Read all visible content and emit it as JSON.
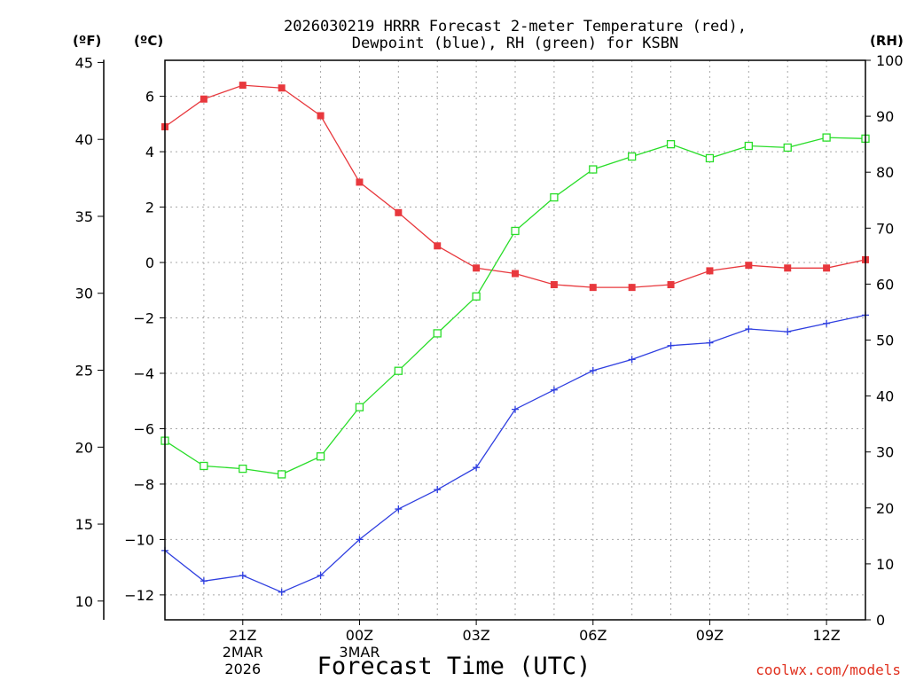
{
  "chart_data": {
    "type": "line",
    "title": "2026030219 HRRR Forecast 2-meter Temperature (red), Dewpoint (blue), RH (green) for KSBN",
    "title_lines": [
      "2026030219 HRRR Forecast 2-meter Temperature (red),",
      "Dewpoint (blue), RH (green) for KSBN"
    ],
    "xlabel": "Forecast Time (UTC)",
    "credit": "coolwx.com/models",
    "units": {
      "f": "(ºF)",
      "c": "(ºC)",
      "rh": "(RH)"
    },
    "x": [
      19,
      20,
      21,
      22,
      23,
      24,
      25,
      26,
      27,
      28,
      29,
      30,
      31,
      32,
      33,
      34,
      35,
      36,
      37
    ],
    "xlim": [
      19,
      37
    ],
    "x_ticks": [
      {
        "x": 21,
        "label": "21Z",
        "sub1": "2MAR",
        "sub2": "2026"
      },
      {
        "x": 24,
        "label": "00Z",
        "sub1": "3MAR",
        "sub2": ""
      },
      {
        "x": 27,
        "label": "03Z",
        "sub1": "",
        "sub2": ""
      },
      {
        "x": 30,
        "label": "06Z",
        "sub1": "",
        "sub2": ""
      },
      {
        "x": 33,
        "label": "09Z",
        "sub1": "",
        "sub2": ""
      },
      {
        "x": 36,
        "label": "12Z",
        "sub1": "",
        "sub2": ""
      }
    ],
    "celsius_axis": {
      "ylim": [
        -12.9,
        7.3
      ],
      "ticks": [
        6,
        4,
        2,
        0,
        -2,
        -4,
        -6,
        -8,
        -10,
        -12
      ]
    },
    "fahrenheit_axis": {
      "ticks": [
        45,
        40,
        35,
        30,
        25,
        20,
        15,
        10
      ]
    },
    "rh_axis": {
      "ylim": [
        0,
        100
      ],
      "ticks": [
        100,
        90,
        80,
        70,
        60,
        50,
        40,
        30,
        20,
        10,
        0
      ]
    },
    "series": [
      {
        "name": "Temperature",
        "unit": "C",
        "color": "#e8383d",
        "marker": "square",
        "values": [
          4.9,
          5.9,
          6.4,
          6.3,
          5.3,
          2.9,
          1.8,
          0.6,
          -0.2,
          -0.4,
          -0.8,
          -0.9,
          -0.9,
          -0.8,
          -0.3,
          -0.1,
          -0.2,
          -0.2,
          0.1
        ]
      },
      {
        "name": "Dewpoint",
        "unit": "C",
        "color": "#2f3fe0",
        "marker": "plus",
        "values": [
          -10.4,
          -11.5,
          -11.3,
          -11.9,
          -11.3,
          -10.0,
          -8.9,
          -8.2,
          -7.4,
          -5.3,
          -4.6,
          -3.9,
          -3.5,
          -3.0,
          -2.9,
          -2.4,
          -2.5,
          -2.2,
          -1.9
        ]
      },
      {
        "name": "RH",
        "unit": "%",
        "color": "#29dd29",
        "marker": "open-square",
        "values": [
          32,
          27.5,
          27,
          26,
          29.2,
          38,
          44.5,
          51.2,
          57.8,
          69.5,
          75.5,
          80.5,
          82.8,
          85,
          82.5,
          84.7,
          84.4,
          86.2,
          86
        ]
      }
    ]
  }
}
